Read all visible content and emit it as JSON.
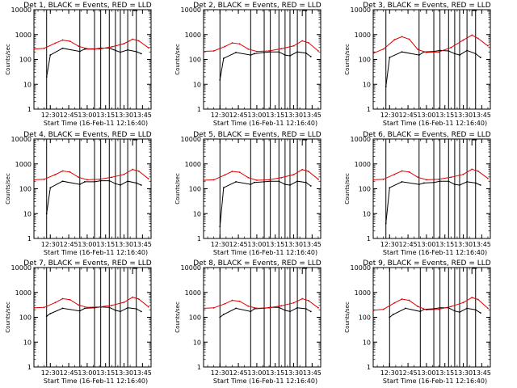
{
  "colors": {
    "events": "#000000",
    "lld": "#dd0000",
    "frame": "#000000",
    "background": "#ffffff"
  },
  "chart_data": [
    {
      "type": "line",
      "title": "Det 1, BLACK = Events, RED = LLD",
      "xlabel": "Start Time (16-Feb-11 12:16:40)",
      "ylabel": "Counts/sec",
      "x_tick_labels": [
        "12:30",
        "12:45",
        "13:00",
        "13:15",
        "13:30",
        "13:45"
      ],
      "y_tick_labels": [
        "1",
        "10",
        "100",
        "1000",
        "10000"
      ],
      "yscale": "log",
      "ylim": [
        1,
        10000
      ],
      "series": [
        {
          "name": "Events",
          "color": "#000000",
          "x": [
            "12:27",
            "12:30",
            "12:40",
            "12:54",
            "12:58",
            "13:06",
            "13:11",
            "13:18",
            "13:23",
            "13:27",
            "13:33",
            "13:40",
            "13:44"
          ],
          "y": [
            20,
            150,
            280,
            210,
            260,
            260,
            285,
            285,
            230,
            195,
            240,
            205,
            170
          ]
        },
        {
          "name": "LLD",
          "color": "#dd0000",
          "x": [
            "12:17",
            "12:25",
            "12:34",
            "12:40",
            "12:46",
            "12:53",
            "13:00",
            "13:10",
            "13:20",
            "13:30",
            "13:37",
            "13:42",
            "13:50"
          ],
          "y": [
            260,
            280,
            450,
            600,
            540,
            340,
            270,
            265,
            320,
            430,
            650,
            560,
            290
          ]
        }
      ],
      "vertical_lines_x": [
        "12:27",
        "12:54",
        "13:06",
        "13:11",
        "13:18",
        "13:23",
        "13:27",
        "13:33",
        "13:40"
      ]
    },
    {
      "type": "line",
      "title": "Det 2, BLACK = Events, RED = LLD",
      "xlabel": "Start Time (16-Feb-11 12:16:40)",
      "ylabel": "Counts/sec",
      "x_tick_labels": [
        "12:30",
        "12:45",
        "13:00",
        "13:15",
        "13:30",
        "13:45"
      ],
      "y_tick_labels": [
        "1",
        "10",
        "100",
        "1000",
        "10000"
      ],
      "yscale": "log",
      "ylim": [
        1,
        10000
      ],
      "series": [
        {
          "name": "Events",
          "color": "#000000",
          "x": [
            "12:30",
            "12:33",
            "12:43",
            "12:55",
            "12:58",
            "13:06",
            "13:11",
            "13:18",
            "13:23",
            "13:27",
            "13:33",
            "13:40",
            "13:44"
          ],
          "y": [
            15,
            110,
            190,
            150,
            170,
            190,
            200,
            200,
            150,
            140,
            200,
            180,
            130
          ]
        },
        {
          "name": "LLD",
          "color": "#dd0000",
          "x": [
            "12:17",
            "12:25",
            "12:34",
            "12:40",
            "12:46",
            "12:53",
            "13:00",
            "13:10",
            "13:20",
            "13:30",
            "13:37",
            "13:42",
            "13:50"
          ],
          "y": [
            210,
            220,
            330,
            460,
            420,
            260,
            210,
            220,
            270,
            350,
            560,
            470,
            220
          ]
        }
      ],
      "vertical_lines_x": [
        "12:30",
        "12:55",
        "13:06",
        "13:11",
        "13:18",
        "13:23",
        "13:27",
        "13:33",
        "13:40"
      ]
    },
    {
      "type": "line",
      "title": "Det 3, BLACK = Events, RED = LLD",
      "xlabel": "Start Time (16-Feb-11 12:16:40)",
      "ylabel": "Counts/sec",
      "x_tick_labels": [
        "12:30",
        "12:45",
        "13:00",
        "13:15",
        "13:30",
        "13:45"
      ],
      "y_tick_labels": [
        "1",
        "10",
        "100",
        "1000",
        "10000"
      ],
      "yscale": "log",
      "ylim": [
        1,
        10000
      ],
      "series": [
        {
          "name": "Events",
          "color": "#000000",
          "x": [
            "12:27",
            "12:30",
            "12:40",
            "12:54",
            "12:58",
            "13:06",
            "13:11",
            "13:18",
            "13:23",
            "13:27",
            "13:33",
            "13:40",
            "13:44"
          ],
          "y": [
            8,
            120,
            200,
            150,
            200,
            210,
            230,
            220,
            170,
            150,
            230,
            170,
            120
          ]
        },
        {
          "name": "LLD",
          "color": "#dd0000",
          "x": [
            "12:17",
            "12:25",
            "12:34",
            "12:40",
            "12:46",
            "12:53",
            "13:00",
            "13:10",
            "13:20",
            "13:30",
            "13:37",
            "13:42",
            "13:50"
          ],
          "y": [
            180,
            260,
            620,
            820,
            650,
            250,
            190,
            200,
            300,
            600,
            950,
            700,
            350
          ]
        }
      ],
      "vertical_lines_x": [
        "12:27",
        "12:54",
        "13:06",
        "13:11",
        "13:18",
        "13:23",
        "13:27",
        "13:33",
        "13:40"
      ]
    },
    {
      "type": "line",
      "title": "Det 4, BLACK = Events, RED = LLD",
      "xlabel": "Start Time (16-Feb-11 12:16:40)",
      "ylabel": "Counts/sec",
      "x_tick_labels": [
        "12:30",
        "12:45",
        "13:00",
        "13:15",
        "13:30",
        "13:45"
      ],
      "y_tick_labels": [
        "1",
        "10",
        "100",
        "1000",
        "10000"
      ],
      "yscale": "log",
      "ylim": [
        1,
        10000
      ],
      "series": [
        {
          "name": "Events",
          "color": "#000000",
          "x": [
            "12:27",
            "12:30",
            "12:40",
            "12:54",
            "12:58",
            "13:06",
            "13:11",
            "13:18",
            "13:23",
            "13:27",
            "13:33",
            "13:40",
            "13:44"
          ],
          "y": [
            10,
            110,
            200,
            150,
            190,
            190,
            210,
            210,
            160,
            140,
            200,
            170,
            140
          ]
        },
        {
          "name": "LLD",
          "color": "#dd0000",
          "x": [
            "12:17",
            "12:25",
            "12:34",
            "12:40",
            "12:46",
            "12:53",
            "13:00",
            "13:10",
            "13:20",
            "13:30",
            "13:37",
            "13:42",
            "13:50"
          ],
          "y": [
            230,
            240,
            370,
            520,
            470,
            290,
            230,
            240,
            290,
            380,
            600,
            510,
            250
          ]
        }
      ],
      "vertical_lines_x": [
        "12:27",
        "12:54",
        "13:06",
        "13:11",
        "13:18",
        "13:23",
        "13:27",
        "13:33",
        "13:40"
      ]
    },
    {
      "type": "line",
      "title": "Det 5, BLACK = Events, RED = LLD",
      "xlabel": "Start Time (16-Feb-11 12:16:40)",
      "ylabel": "Counts/sec",
      "x_tick_labels": [
        "12:30",
        "12:45",
        "13:00",
        "13:15",
        "13:30",
        "13:45"
      ],
      "y_tick_labels": [
        "1",
        "10",
        "100",
        "1000",
        "10000"
      ],
      "yscale": "log",
      "ylim": [
        1,
        10000
      ],
      "series": [
        {
          "name": "Events",
          "color": "#000000",
          "x": [
            "12:30",
            "12:33",
            "12:43",
            "12:55",
            "12:58",
            "13:06",
            "13:11",
            "13:18",
            "13:23",
            "13:27",
            "13:33",
            "13:40",
            "13:44"
          ],
          "y": [
            3,
            110,
            190,
            150,
            180,
            190,
            200,
            200,
            150,
            140,
            200,
            180,
            130
          ]
        },
        {
          "name": "LLD",
          "color": "#dd0000",
          "x": [
            "12:17",
            "12:25",
            "12:34",
            "12:40",
            "12:46",
            "12:53",
            "13:00",
            "13:10",
            "13:20",
            "13:30",
            "13:37",
            "13:42",
            "13:50"
          ],
          "y": [
            220,
            230,
            360,
            500,
            460,
            280,
            220,
            230,
            280,
            370,
            590,
            500,
            240
          ]
        }
      ],
      "vertical_lines_x": [
        "12:30",
        "12:55",
        "13:06",
        "13:11",
        "13:18",
        "13:23",
        "13:27",
        "13:33",
        "13:40"
      ]
    },
    {
      "type": "line",
      "title": "Det 6, BLACK = Events, RED = LLD",
      "xlabel": "Start Time (16-Feb-11 12:16:40)",
      "ylabel": "Counts/sec",
      "x_tick_labels": [
        "12:30",
        "12:45",
        "13:00",
        "13:15",
        "13:30",
        "13:45"
      ],
      "y_tick_labels": [
        "1",
        "10",
        "100",
        "1000",
        "10000"
      ],
      "yscale": "log",
      "ylim": [
        1,
        10000
      ],
      "series": [
        {
          "name": "Events",
          "color": "#000000",
          "x": [
            "12:27",
            "12:30",
            "12:40",
            "12:54",
            "12:58",
            "13:06",
            "13:11",
            "13:18",
            "13:23",
            "13:27",
            "13:33",
            "13:40",
            "13:44"
          ],
          "y": [
            4,
            110,
            190,
            150,
            170,
            180,
            200,
            200,
            150,
            140,
            190,
            170,
            140
          ]
        },
        {
          "name": "LLD",
          "color": "#dd0000",
          "x": [
            "12:17",
            "12:25",
            "12:34",
            "12:40",
            "12:46",
            "12:53",
            "13:00",
            "13:10",
            "13:20",
            "13:30",
            "13:37",
            "13:42",
            "13:50"
          ],
          "y": [
            230,
            240,
            380,
            520,
            470,
            290,
            230,
            240,
            290,
            380,
            610,
            510,
            260
          ]
        }
      ],
      "vertical_lines_x": [
        "12:27",
        "12:54",
        "13:06",
        "13:11",
        "13:18",
        "13:23",
        "13:27",
        "13:33",
        "13:40"
      ]
    },
    {
      "type": "line",
      "title": "Det 7, BLACK = Events, RED = LLD",
      "xlabel": "Start Time (16-Feb-11 12:16:40)",
      "ylabel": "Counts/sec",
      "x_tick_labels": [
        "12:30",
        "12:45",
        "13:00",
        "13:15",
        "13:30",
        "13:45"
      ],
      "y_tick_labels": [
        "1",
        "10",
        "100",
        "1000",
        "10000"
      ],
      "yscale": "log",
      "ylim": [
        1,
        10000
      ],
      "series": [
        {
          "name": "Events",
          "color": "#000000",
          "x": [
            "12:27",
            "12:30",
            "12:40",
            "12:54",
            "12:58",
            "13:06",
            "13:11",
            "13:18",
            "13:23",
            "13:27",
            "13:33",
            "13:40",
            "13:44"
          ],
          "y": [
            110,
            140,
            230,
            180,
            230,
            240,
            260,
            250,
            190,
            170,
            240,
            220,
            170
          ]
        },
        {
          "name": "LLD",
          "color": "#dd0000",
          "x": [
            "12:17",
            "12:25",
            "12:34",
            "12:40",
            "12:46",
            "12:53",
            "13:00",
            "13:10",
            "13:20",
            "13:30",
            "13:37",
            "13:42",
            "13:50"
          ],
          "y": [
            240,
            250,
            390,
            560,
            510,
            310,
            250,
            260,
            300,
            400,
            640,
            540,
            260
          ]
        }
      ],
      "vertical_lines_x": [
        "12:27",
        "12:54",
        "13:06",
        "13:11",
        "13:18",
        "13:23",
        "13:27",
        "13:33",
        "13:40"
      ]
    },
    {
      "type": "line",
      "title": "Det 8, BLACK = Events, RED = LLD",
      "xlabel": "Start Time (16-Feb-11 12:16:40)",
      "ylabel": "Counts/sec",
      "x_tick_labels": [
        "12:30",
        "12:45",
        "13:00",
        "13:15",
        "13:30",
        "13:45"
      ],
      "y_tick_labels": [
        "1",
        "10",
        "100",
        "1000",
        "10000"
      ],
      "yscale": "log",
      "ylim": [
        1,
        10000
      ],
      "series": [
        {
          "name": "Events",
          "color": "#000000",
          "x": [
            "12:30",
            "12:33",
            "12:43",
            "12:55",
            "12:58",
            "13:06",
            "13:11",
            "13:18",
            "13:23",
            "13:27",
            "13:33",
            "13:40",
            "13:44"
          ],
          "y": [
            100,
            130,
            230,
            170,
            220,
            230,
            250,
            250,
            190,
            170,
            240,
            220,
            170
          ]
        },
        {
          "name": "LLD",
          "color": "#dd0000",
          "x": [
            "12:17",
            "12:25",
            "12:34",
            "12:40",
            "12:46",
            "12:53",
            "13:00",
            "13:10",
            "13:20",
            "13:30",
            "13:37",
            "13:42",
            "13:50"
          ],
          "y": [
            230,
            240,
            350,
            480,
            440,
            280,
            230,
            240,
            290,
            380,
            560,
            470,
            240
          ]
        }
      ],
      "vertical_lines_x": [
        "12:30",
        "12:55",
        "13:06",
        "13:11",
        "13:18",
        "13:23",
        "13:27",
        "13:33",
        "13:40"
      ]
    },
    {
      "type": "line",
      "title": "Det 9, BLACK = Events, RED = LLD",
      "xlabel": "Start Time (16-Feb-11 12:16:40)",
      "ylabel": "Counts/sec",
      "x_tick_labels": [
        "12:30",
        "12:45",
        "13:00",
        "13:15",
        "13:30",
        "13:45"
      ],
      "y_tick_labels": [
        "1",
        "10",
        "100",
        "1000",
        "10000"
      ],
      "yscale": "log",
      "ylim": [
        1,
        10000
      ],
      "series": [
        {
          "name": "Events",
          "color": "#000000",
          "x": [
            "12:30",
            "12:33",
            "12:43",
            "12:55",
            "12:58",
            "13:06",
            "13:11",
            "13:18",
            "13:23",
            "13:27",
            "13:33",
            "13:40",
            "13:44"
          ],
          "y": [
            100,
            130,
            230,
            170,
            210,
            220,
            240,
            240,
            180,
            160,
            230,
            200,
            150
          ]
        },
        {
          "name": "LLD",
          "color": "#dd0000",
          "x": [
            "12:17",
            "12:25",
            "12:34",
            "12:40",
            "12:46",
            "12:53",
            "13:00",
            "13:10",
            "13:20",
            "13:30",
            "13:37",
            "13:42",
            "13:50"
          ],
          "y": [
            190,
            210,
            380,
            540,
            480,
            270,
            200,
            210,
            270,
            390,
            620,
            520,
            230
          ]
        }
      ],
      "vertical_lines_x": [
        "12:30",
        "12:55",
        "13:06",
        "13:11",
        "13:18",
        "13:23",
        "13:27",
        "13:33",
        "13:40"
      ]
    }
  ]
}
